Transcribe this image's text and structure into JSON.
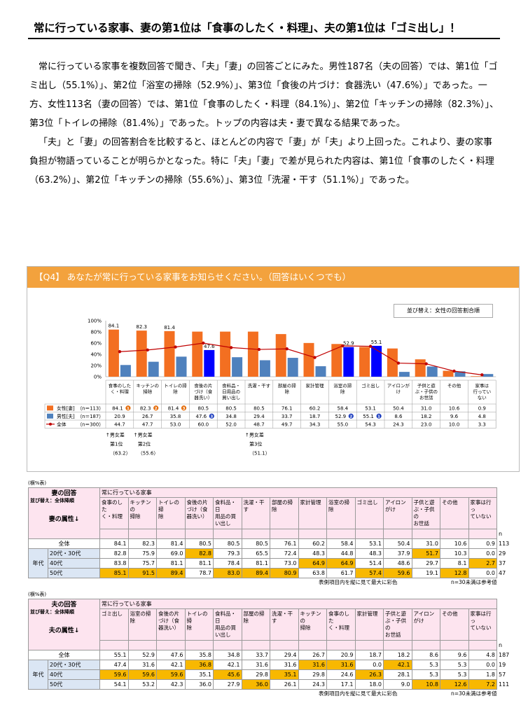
{
  "headline": "常に行っている家事、妻の第1位は「食事のしたく・料理」、夫の第1位は「ゴミ出し」！",
  "paragraphs": [
    "常に行っている家事を複数回答で聞き、「夫」「妻」の回答ごとにみた。男性187名（夫の回答）では、第1位「ゴミ出し（55.1%）」、第2位「浴室の掃除（52.9%）」、第3位「食後の片づけ：食器洗い（47.6%）」であった。一方、女性113名（妻の回答）では、第1位「食事のしたく・料理（84.1%）」、第2位「キッチンの掃除（82.3%）」、第3位「トイレの掃除（81.4%）」であった。トップの内容は夫・妻で異なる結果であった。",
    "「夫」と「妻」の回答割合を比較すると、ほとんどの内容で「妻」が「夫」より上回った。これより、妻の家事負担が物語っていることが明らかとなった。特に「夫」「妻」で差が見られた内容は、第1位「食事のしたく・料理（63.2%）」、第2位「キッチンの掃除（55.6%）」、第3位「洗濯・干す（51.1%）」であった。"
  ],
  "chart_header": "【Q4】 あなたが常に行っている家事をお知らせください。（回答はいくつでも）",
  "sort_note": "並び替え：女性の回答割合順",
  "colors": {
    "wife": "#f36f21",
    "husband": "#4f81bd",
    "husband_top": "#0000ff",
    "total": "#c00000",
    "header": "#f3a23d",
    "highlight": "#f8b800",
    "rank_wife": "#e46c0a",
    "rank_husband": "#1f3fbf"
  },
  "chart_data": {
    "type": "bar",
    "categories": [
      "食事のした\nく・料理",
      "キッチンの\n掃除",
      "トイレの掃\n除",
      "食後の片\nづけ（食\n器洗い）",
      "食料品・\n日用品の\n買い出し",
      "洗濯・干す",
      "部屋の掃\n除",
      "家計管理",
      "浴室の掃\n除",
      "ゴミ出し",
      "アイロンが\nけ",
      "子供と遊\nぶ・子供の\nお世話",
      "その他",
      "家事は\n行ってい\nない"
    ],
    "series": [
      {
        "name": "女性[妻]",
        "n": "（n＝113）",
        "values": [
          84.1,
          82.3,
          81.4,
          80.5,
          80.5,
          80.5,
          76.1,
          60.2,
          58.4,
          53.1,
          50.4,
          31.0,
          10.6,
          0.9
        ],
        "ranks": {
          "0": "1",
          "1": "2",
          "2": "3"
        }
      },
      {
        "name": "男性[夫]",
        "n": "（n＝187）",
        "values": [
          20.9,
          26.7,
          35.8,
          47.6,
          34.8,
          29.4,
          33.7,
          18.7,
          52.9,
          55.1,
          8.6,
          18.2,
          9.6,
          4.8
        ],
        "ranks": {
          "3": "3",
          "8": "2",
          "9": "1"
        }
      },
      {
        "name": "全体",
        "n": "（n＝300）",
        "values": [
          44.7,
          47.7,
          53.0,
          60.0,
          52.0,
          48.7,
          49.7,
          34.3,
          55.0,
          54.3,
          24.3,
          23.0,
          10.0,
          3.3
        ]
      }
    ],
    "bar_labels": [
      {
        "index": 0,
        "series": 0,
        "text": "84.1"
      },
      {
        "index": 1,
        "series": 0,
        "text": "82.3"
      },
      {
        "index": 2,
        "series": 0,
        "text": "81.4"
      },
      {
        "index": 3,
        "series": 1,
        "text": "47.6"
      },
      {
        "index": 8,
        "series": 1,
        "text": "52.9"
      },
      {
        "index": 9,
        "series": 1,
        "text": "55.1"
      }
    ],
    "yticks": [
      "0%",
      "20%",
      "40%",
      "60%",
      "80%",
      "100%"
    ],
    "ylim": [
      0,
      100
    ],
    "gap_notes": [
      {
        "index": 0,
        "lines": [
          "↑男女差",
          "第1位",
          "（63.2）"
        ]
      },
      {
        "index": 1,
        "lines": [
          "↑男女差",
          "第2位",
          "（55.6）"
        ]
      },
      {
        "index": 5,
        "lines": [
          "↑男女差",
          "第3位",
          "（51.1）"
        ]
      }
    ]
  },
  "wife_table": {
    "pct_note": "(横%表)",
    "title": "妻の回答",
    "sort": "並び替え：全体降順",
    "attr": "妻の属性↓",
    "question": "常に行っている家事",
    "columns": [
      "食事のした\nく・料理",
      "キッチンの\n掃除",
      "トイレの掃\n除",
      "食後の片\nづけ（食\n器洗い）",
      "食料品・日\n用品の買\nい出し",
      "洗濯・干す",
      "部屋の掃\n除",
      "家計管理",
      "浴室の掃\n除",
      "ゴミ出し",
      "アイロンがけ",
      "子供と遊\nぶ・子供の\nお世話",
      "その他",
      "家事は行っ\nていない"
    ],
    "n_label": "n",
    "total_label": "全体",
    "group_label": "年代",
    "rows": [
      {
        "label": "全体",
        "values": [
          "84.1",
          "82.3",
          "81.4",
          "80.5",
          "80.5",
          "80.5",
          "76.1",
          "60.2",
          "58.4",
          "53.1",
          "50.4",
          "31.0",
          "10.6",
          "0.9"
        ],
        "n": "113",
        "hl": []
      },
      {
        "label": "20代・30代",
        "values": [
          "82.8",
          "75.9",
          "69.0",
          "82.8",
          "79.3",
          "65.5",
          "72.4",
          "48.3",
          "44.8",
          "48.3",
          "37.9",
          "51.7",
          "10.3",
          "0.0"
        ],
        "n": "29",
        "hl": [
          3,
          11
        ]
      },
      {
        "label": "40代",
        "values": [
          "83.8",
          "75.7",
          "81.1",
          "81.1",
          "78.4",
          "81.1",
          "73.0",
          "64.9",
          "64.9",
          "51.4",
          "48.6",
          "29.7",
          "8.1",
          "2.7"
        ],
        "n": "37",
        "hl": [
          7,
          8,
          13
        ]
      },
      {
        "label": "50代",
        "values": [
          "85.1",
          "91.5",
          "89.4",
          "78.7",
          "83.0",
          "89.4",
          "80.9",
          "63.8",
          "61.7",
          "57.4",
          "59.6",
          "19.1",
          "12.8",
          "0.0"
        ],
        "n": "47",
        "hl": [
          0,
          1,
          2,
          4,
          5,
          6,
          9,
          10,
          12
        ]
      }
    ],
    "foot_left": "表側項目内を縦に見て最大に彩色",
    "foot_right": "n=30未満は参考値"
  },
  "husband_table": {
    "pct_note": "(横%表)",
    "title": "夫の回答",
    "sort": "並び替え：全体降順",
    "attr": "夫の属性↓",
    "question": "常に行っている家事",
    "columns": [
      "ゴミ出し",
      "浴室の掃\n除",
      "食後の片\nづけ（食\n器洗い）",
      "トイレの掃\n除",
      "食料品・日\n用品の買\nい出し",
      "部屋の掃\n除",
      "洗濯・干す",
      "キッチンの\n掃除",
      "食事のした\nく・料理",
      "家計管理",
      "子供と遊\nぶ・子供の\nお世話",
      "アイロンがけ",
      "その他",
      "家事は行っ\nていない"
    ],
    "n_label": "n",
    "total_label": "全体",
    "group_label": "年代",
    "rows": [
      {
        "label": "全体",
        "values": [
          "55.1",
          "52.9",
          "47.6",
          "35.8",
          "34.8",
          "33.7",
          "29.4",
          "26.7",
          "20.9",
          "18.7",
          "18.2",
          "8.6",
          "9.6",
          "4.8"
        ],
        "n": "187",
        "hl": []
      },
      {
        "label": "20代・30代",
        "values": [
          "47.4",
          "31.6",
          "42.1",
          "36.8",
          "42.1",
          "31.6",
          "31.6",
          "31.6",
          "31.6",
          "0.0",
          "42.1",
          "5.3",
          "5.3",
          "0.0"
        ],
        "n": "19",
        "hl": [
          3,
          7,
          8,
          10
        ]
      },
      {
        "label": "40代",
        "values": [
          "59.6",
          "59.6",
          "59.6",
          "35.1",
          "45.6",
          "29.8",
          "35.1",
          "29.8",
          "24.6",
          "26.3",
          "28.1",
          "5.3",
          "5.3",
          "1.8"
        ],
        "n": "57",
        "hl": [
          0,
          1,
          2,
          4,
          6,
          9
        ]
      },
      {
        "label": "50代",
        "values": [
          "54.1",
          "53.2",
          "42.3",
          "36.0",
          "27.9",
          "36.0",
          "26.1",
          "24.3",
          "17.1",
          "18.0",
          "9.0",
          "10.8",
          "12.6",
          "7.2"
        ],
        "n": "111",
        "hl": [
          5,
          11,
          12,
          13
        ]
      }
    ],
    "foot_left": "表側項目内を縦に見て最大に彩色",
    "foot_right": "n=30未満は参考値"
  }
}
